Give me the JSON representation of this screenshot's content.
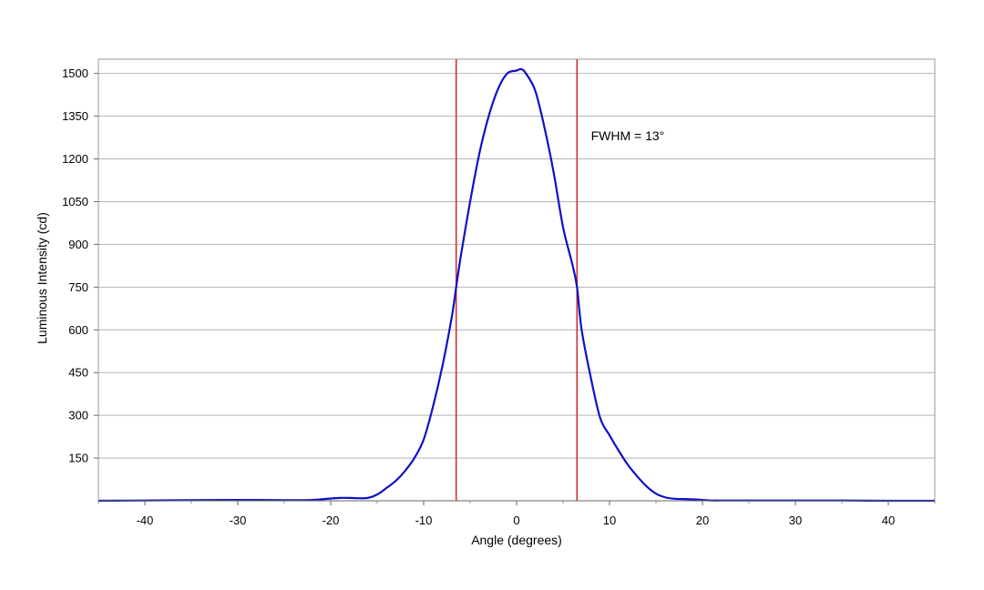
{
  "chart_data": {
    "type": "line",
    "title": "",
    "xlabel": "Angle (degrees)",
    "ylabel": "Luminous Intensity (cd)",
    "xlim": [
      -45,
      45
    ],
    "ylim": [
      0,
      1550
    ],
    "x_ticks": [
      -40,
      -30,
      -20,
      -10,
      0,
      10,
      20,
      30,
      40
    ],
    "x_tick_labels": [
      "-40",
      "-30",
      "-20",
      "-10",
      "0",
      "10",
      "20",
      "30",
      "40"
    ],
    "y_ticks": [
      150,
      300,
      450,
      600,
      750,
      900,
      1050,
      1200,
      1350,
      1500
    ],
    "y_tick_labels": [
      "150",
      "300",
      "450",
      "600",
      "750",
      "900",
      "1050",
      "1200",
      "1350",
      "1500"
    ],
    "grid": true,
    "grid_axis": "y",
    "series": [
      {
        "color": "#1010c8",
        "x": [
          -45,
          -40,
          -35,
          -30,
          -25,
          -22,
          -20,
          -19,
          -18,
          -17,
          -16,
          -15,
          -14,
          -13,
          -12,
          -11,
          -10,
          -9,
          -8,
          -7,
          -6.5,
          -6,
          -5,
          -4,
          -3,
          -2,
          -1,
          0,
          0.5,
          1,
          2,
          3,
          4,
          5,
          6,
          6.5,
          7,
          8,
          9,
          10,
          11,
          12,
          13,
          14,
          15,
          16,
          17,
          18,
          19,
          20,
          21,
          22,
          25,
          30,
          35,
          40,
          45
        ],
        "y": [
          0,
          1,
          2,
          3,
          2,
          3,
          8,
          10,
          10,
          9,
          10,
          22,
          45,
          70,
          105,
          150,
          215,
          330,
          470,
          640,
          750,
          860,
          1050,
          1220,
          1350,
          1445,
          1500,
          1510,
          1515,
          1500,
          1440,
          1310,
          1150,
          960,
          830,
          750,
          600,
          430,
          290,
          230,
          175,
          125,
          85,
          50,
          25,
          12,
          7,
          6,
          5,
          3,
          1,
          1,
          1,
          1,
          1,
          0,
          0
        ]
      }
    ],
    "vertical_lines": [
      {
        "x": -6.5,
        "color": "#d03030"
      },
      {
        "x": 6.5,
        "color": "#d03030"
      }
    ],
    "annotations": [
      {
        "text": "FWHM = 13°",
        "x": 8,
        "y": 1265
      }
    ]
  }
}
